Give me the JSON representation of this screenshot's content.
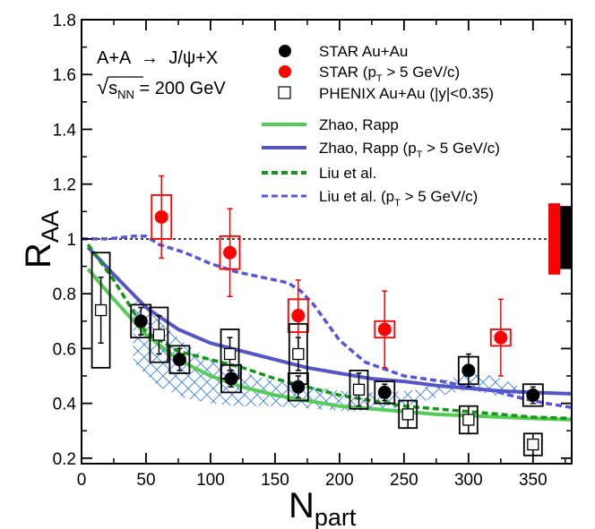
{
  "chart_data": {
    "type": "scatter",
    "title": "",
    "xlabel": "N",
    "xlabel_sub": "part",
    "ylabel": "R",
    "ylabel_sub": "AA",
    "xlim": [
      0,
      380
    ],
    "ylim": [
      0.18,
      1.8
    ],
    "xticks": [
      0,
      50,
      100,
      150,
      200,
      250,
      300,
      350
    ],
    "yticks": [
      0.2,
      0.4,
      0.6,
      0.8,
      1,
      1.2,
      1.4,
      1.6,
      1.8
    ],
    "ytick_labels": [
      "0.2",
      "0.4",
      "0.6",
      "0.8",
      "1",
      "1.2",
      "1.4",
      "1.6",
      "1.8"
    ],
    "reference_line": 1.0,
    "annotation": {
      "reaction_a": "A+A",
      "arrow": "→",
      "reaction_b": "J/ψ+X",
      "sqrt": "√",
      "s_label": "s",
      "s_sub": "NN",
      "energy": " = 200 GeV"
    },
    "legend": {
      "star": "STAR Au+Au",
      "star_hipt_a": "STAR (p",
      "star_hipt_sub": "T",
      "star_hipt_b": " > 5 GeV/c)",
      "phenix": "PHENIX Au+Au (|y|<0.35)",
      "zhao": "Zhao, Rapp",
      "zhao_hipt_a": "Zhao, Rapp (p",
      "zhao_hipt_sub": "T",
      "zhao_hipt_b": " > 5 GeV/c)",
      "liu": "Liu et al.",
      "liu_hipt_a": "Liu et al. (p",
      "liu_hipt_sub": "T",
      "liu_hipt_b": " > 5 GeV/c)"
    },
    "colors": {
      "star": "#000000",
      "star_hipt": "#ff0000",
      "phenix": "#000000",
      "zhao": "#55cc55",
      "zhao_hipt": "#5555c8",
      "liu": "#119911",
      "liu_hipt": "#5555dd",
      "band": "#3a7fe0",
      "norm_red": "#ff0000",
      "norm_black": "#000000"
    },
    "series": [
      {
        "name": "STAR Au+Au",
        "kind": "points",
        "x": [
          46,
          76,
          116,
          168,
          235,
          300,
          350
        ],
        "y": [
          0.7,
          0.56,
          0.49,
          0.46,
          0.44,
          0.52,
          0.43
        ],
        "err": [
          0.05,
          0.04,
          0.03,
          0.04,
          0.03,
          0.06,
          0.03
        ],
        "sys": [
          0.06,
          0.05,
          0.05,
          0.05,
          0.04,
          0.05,
          0.04
        ]
      },
      {
        "name": "STAR (pT > 5 GeV/c)",
        "kind": "points",
        "x": [
          62,
          115,
          168,
          235,
          325
        ],
        "y": [
          1.08,
          0.95,
          0.72,
          0.67,
          0.64
        ],
        "err": [
          0.15,
          0.16,
          0.13,
          0.14,
          0.14
        ],
        "sys": [
          0.08,
          0.06,
          0.06,
          0.03,
          0.03
        ]
      },
      {
        "name": "PHENIX Au+Au (|y|<0.35)",
        "kind": "points",
        "x": [
          15,
          60,
          115,
          168,
          215,
          253,
          300,
          350
        ],
        "y": [
          0.74,
          0.65,
          0.58,
          0.58,
          0.45,
          0.36,
          0.34,
          0.25
        ],
        "err": [
          0.12,
          0.07,
          0.06,
          0.06,
          0.06,
          0.05,
          0.05,
          0.04
        ],
        "sys": [
          0.21,
          0.1,
          0.09,
          0.11,
          0.07,
          0.05,
          0.05,
          0.04
        ]
      },
      {
        "name": "Zhao, Rapp",
        "kind": "line",
        "style": "solid",
        "x": [
          5,
          25,
          50,
          75,
          100,
          125,
          150,
          175,
          200,
          225,
          250,
          275,
          300,
          325,
          350,
          380
        ],
        "y": [
          0.89,
          0.78,
          0.65,
          0.56,
          0.5,
          0.46,
          0.43,
          0.41,
          0.39,
          0.38,
          0.37,
          0.36,
          0.355,
          0.35,
          0.345,
          0.34
        ]
      },
      {
        "name": "Zhao, Rapp (pT > 5 GeV/c)",
        "kind": "line",
        "style": "solid",
        "x": [
          5,
          25,
          50,
          75,
          100,
          125,
          150,
          175,
          200,
          225,
          250,
          275,
          300,
          325,
          350,
          380
        ],
        "y": [
          0.97,
          0.87,
          0.75,
          0.67,
          0.62,
          0.59,
          0.56,
          0.53,
          0.51,
          0.49,
          0.48,
          0.465,
          0.455,
          0.445,
          0.44,
          0.435
        ]
      },
      {
        "name": "Liu et al.",
        "kind": "line",
        "style": "dashed",
        "x": [
          5,
          25,
          50,
          75,
          100,
          125,
          150,
          175,
          200,
          225,
          250,
          275,
          300,
          325,
          350,
          380
        ],
        "y": [
          0.98,
          0.85,
          0.66,
          0.59,
          0.56,
          0.53,
          0.49,
          0.46,
          0.43,
          0.41,
          0.39,
          0.38,
          0.37,
          0.36,
          0.35,
          0.345
        ]
      },
      {
        "name": "Liu et al. (pT > 5 GeV/c)",
        "kind": "line",
        "style": "dashed",
        "x": [
          0,
          20,
          40,
          50,
          60,
          80,
          100,
          120,
          140,
          160,
          170,
          180,
          200,
          220,
          250,
          280,
          300,
          320,
          340,
          360,
          380
        ],
        "y": [
          1.0,
          1.0,
          1.01,
          1.01,
          0.98,
          0.95,
          0.91,
          0.88,
          0.86,
          0.84,
          0.81,
          0.76,
          0.63,
          0.55,
          0.5,
          0.48,
          0.46,
          0.445,
          0.42,
          0.4,
          0.385
        ]
      },
      {
        "name": "Zhao, Rapp band",
        "kind": "band",
        "x": [
          40,
          60,
          80,
          100,
          120,
          150,
          180,
          210,
          240,
          260,
          280,
          300,
          320,
          340
        ],
        "y_low": [
          0.55,
          0.46,
          0.42,
          0.4,
          0.39,
          0.39,
          0.38,
          0.37,
          0.38,
          0.4,
          0.43,
          0.45,
          0.43,
          0.42
        ],
        "y_high": [
          0.8,
          0.7,
          0.62,
          0.56,
          0.52,
          0.48,
          0.46,
          0.44,
          0.44,
          0.45,
          0.48,
          0.51,
          0.5,
          0.46
        ]
      }
    ],
    "normalization_boxes": [
      {
        "name": "STAR (pT > 5 GeV/c) normalization",
        "color_key": "norm_red",
        "y_low": 0.87,
        "y_high": 1.13
      },
      {
        "name": "STAR normalization",
        "color_key": "norm_black",
        "y_low": 0.89,
        "y_high": 1.12
      }
    ]
  }
}
